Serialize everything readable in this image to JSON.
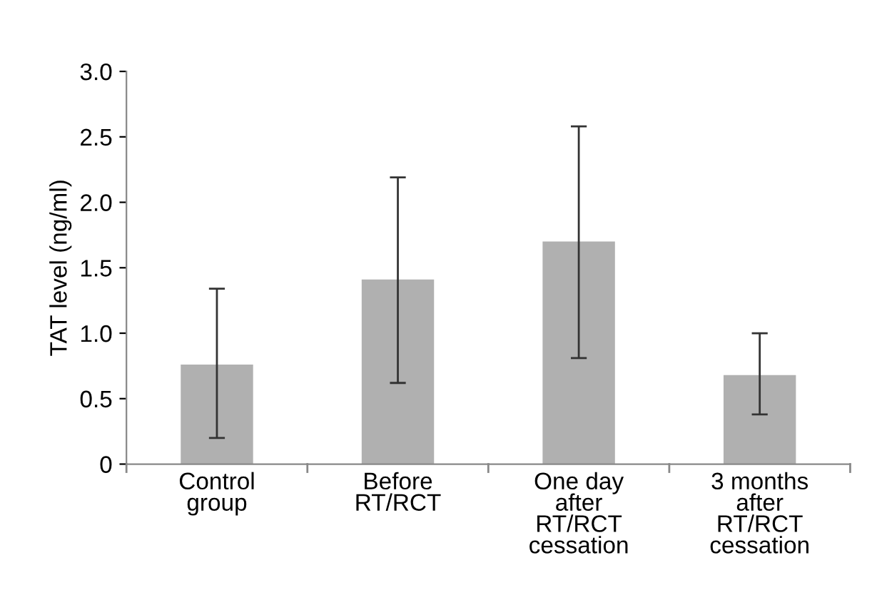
{
  "chart_data": {
    "type": "bar",
    "categories": [
      "Control\ngroup",
      "Before\nRT/RCT",
      "One day\nafter\nRT/RCT\ncessation",
      "3 months\nafter\nRT/RCT\ncessation"
    ],
    "values": [
      0.76,
      1.41,
      1.7,
      0.68
    ],
    "errors": [
      [
        0.2,
        1.34
      ],
      [
        0.62,
        2.19
      ],
      [
        0.81,
        2.58
      ],
      [
        0.38,
        1.0
      ]
    ],
    "color": "#b0b0b0",
    "ylabel": "TAT level (ng/ml)",
    "ylim": [
      0,
      3.0
    ],
    "yticks": [
      0,
      {
        "value": 0.5,
        "label": "0.5"
      },
      {
        "value": 1,
        "label": "1.0"
      },
      {
        "value": 1.5,
        "label": "1.5"
      },
      {
        "value": 2,
        "label": "2.0"
      },
      {
        "value": 2.5,
        "label": "2.5"
      },
      {
        "value": 3,
        "label": "3.0"
      }
    ],
    "grid": false,
    "legend": false
  }
}
